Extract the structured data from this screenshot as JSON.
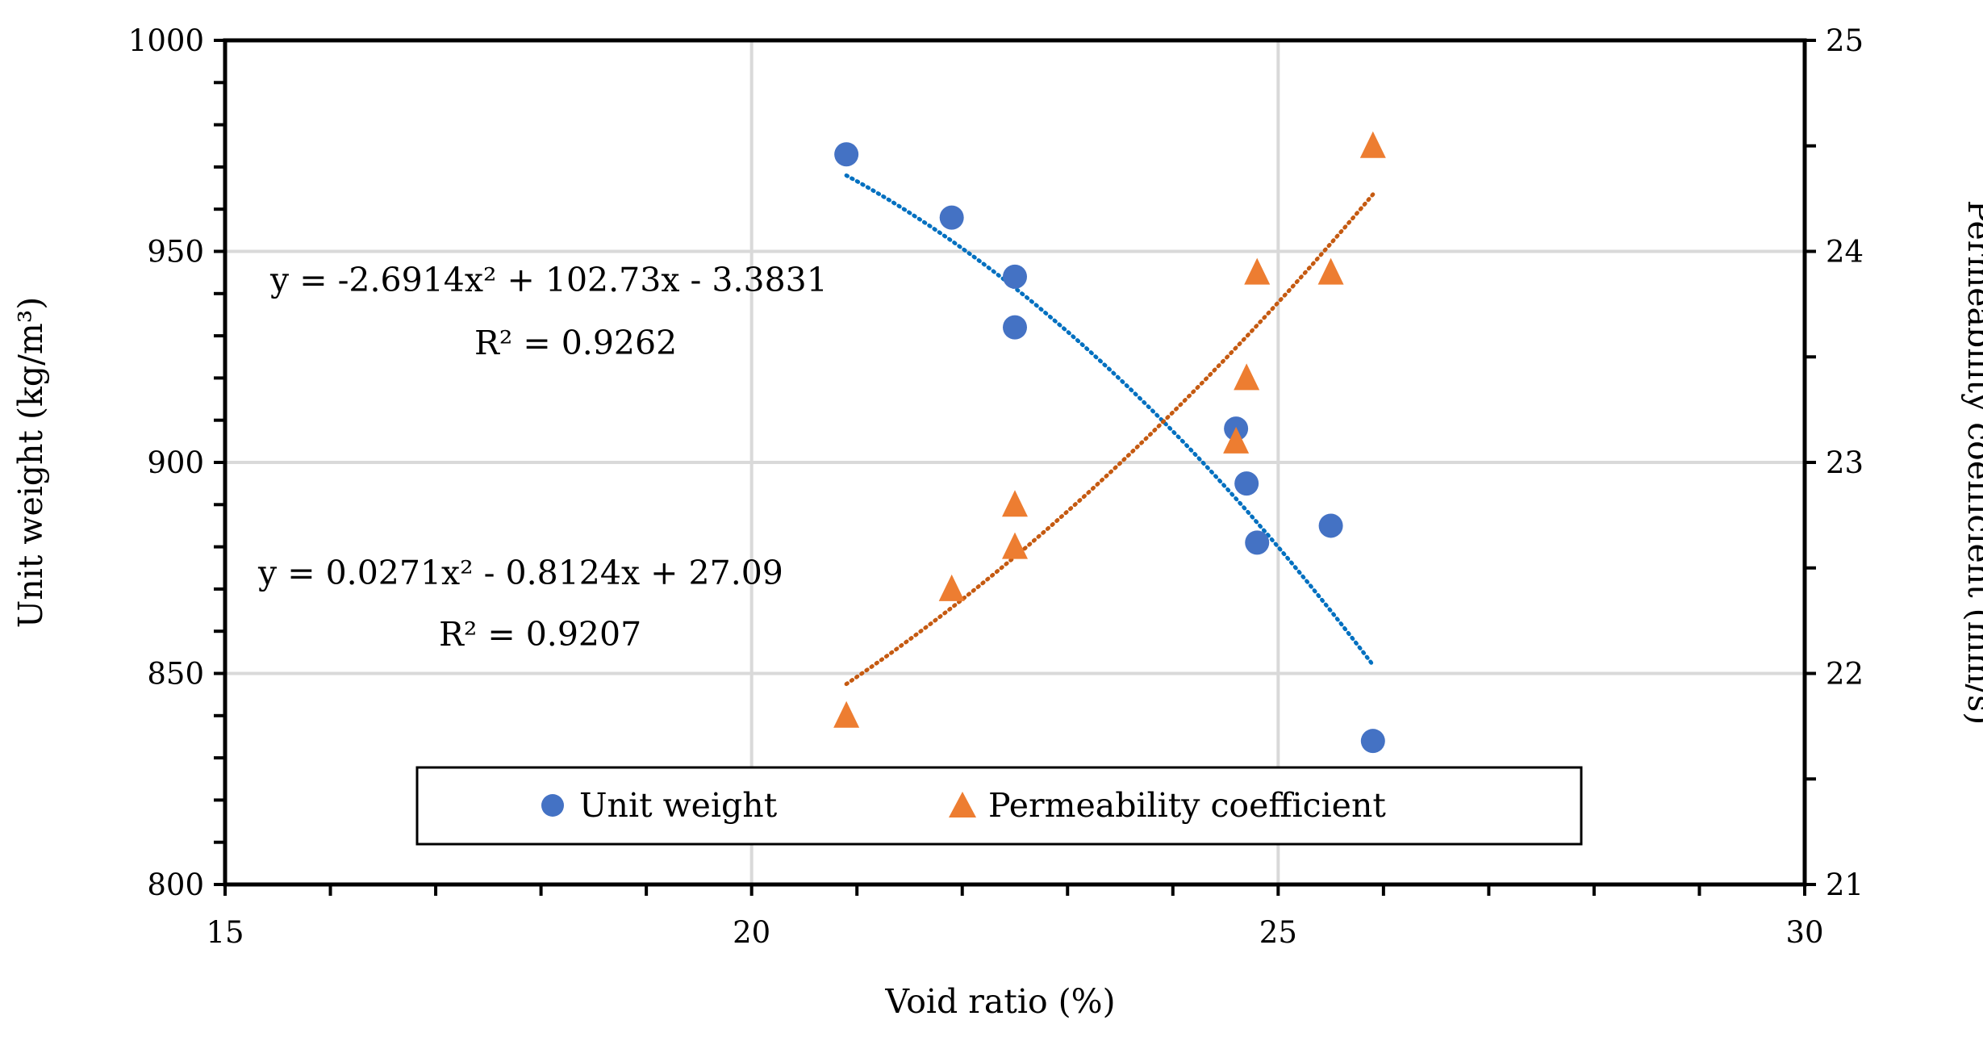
{
  "chart_data": {
    "type": "scatter",
    "title": "",
    "xlabel": "Void ratio (%)",
    "ylabel_left": "Unit weight (kg/m³)",
    "ylabel_right": "Permeability coefficient (mm/s)",
    "xlim": [
      15,
      30
    ],
    "ylim_left": [
      800,
      1000
    ],
    "ylim_right": [
      21,
      25
    ],
    "x_ticks": [
      "15",
      "20",
      "25",
      "30"
    ],
    "y_left_ticks": [
      "800",
      "850",
      "900",
      "950",
      "1000"
    ],
    "y_right_ticks": [
      "21",
      "22",
      "23",
      "24",
      "25"
    ],
    "grid": true,
    "legend_position": "bottom-center",
    "series": [
      {
        "name": "Unit weight",
        "axis": "left",
        "marker": "circle",
        "color": "#4472C4",
        "points": [
          [
            20.9,
            973
          ],
          [
            21.9,
            958
          ],
          [
            22.5,
            944
          ],
          [
            22.5,
            932
          ],
          [
            24.6,
            908
          ],
          [
            24.7,
            895
          ],
          [
            24.8,
            881
          ],
          [
            25.5,
            885
          ],
          [
            25.9,
            834
          ]
        ],
        "trendline": {
          "type": "polynomial-2",
          "color": "#0070C0",
          "x_range": [
            20.9,
            25.9
          ],
          "y_start": 968,
          "y_mid": 922,
          "y_end": 852,
          "equation": "y = -2.6914x² + 102.73x - 3.3831",
          "r2": "R² = 0.9262"
        }
      },
      {
        "name": "Permeability coefficient",
        "axis": "right",
        "marker": "triangle",
        "color": "#ED7D31",
        "points": [
          [
            20.9,
            21.8
          ],
          [
            21.9,
            22.4
          ],
          [
            22.5,
            22.8
          ],
          [
            22.5,
            22.6
          ],
          [
            24.6,
            23.1
          ],
          [
            24.7,
            23.4
          ],
          [
            24.8,
            23.9
          ],
          [
            25.5,
            23.9
          ],
          [
            25.9,
            24.5
          ]
        ],
        "trendline": {
          "type": "polynomial-2",
          "color": "#C55A11",
          "x_range": [
            20.9,
            25.9
          ],
          "y_start": 21.95,
          "y_mid": 22.95,
          "y_end": 24.27,
          "equation": "y = 0.0271x² - 0.8124x + 27.09",
          "r2": "R² = 0.9207"
        }
      }
    ]
  }
}
